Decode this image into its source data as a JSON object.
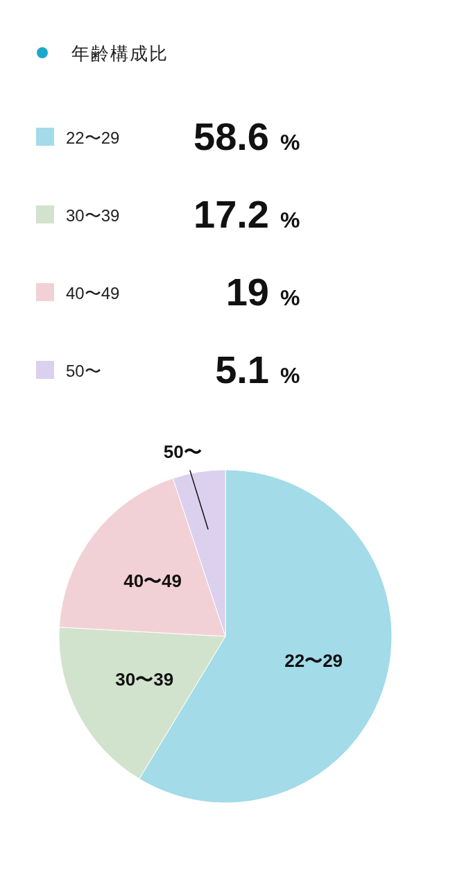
{
  "chart_data": {
    "type": "pie",
    "title": "年齢構成比",
    "categories": [
      "22〜29",
      "30〜39",
      "40〜49",
      "50〜"
    ],
    "values": [
      58.6,
      17.2,
      19,
      5.1
    ],
    "value_labels": [
      "58.6",
      "17.2",
      "19",
      "5.1"
    ],
    "colors": [
      "#a3dbe8",
      "#d2e3cd",
      "#f2d1d6",
      "#dbd0ee"
    ],
    "annotations": [
      "%"
    ],
    "legend": "top"
  }
}
